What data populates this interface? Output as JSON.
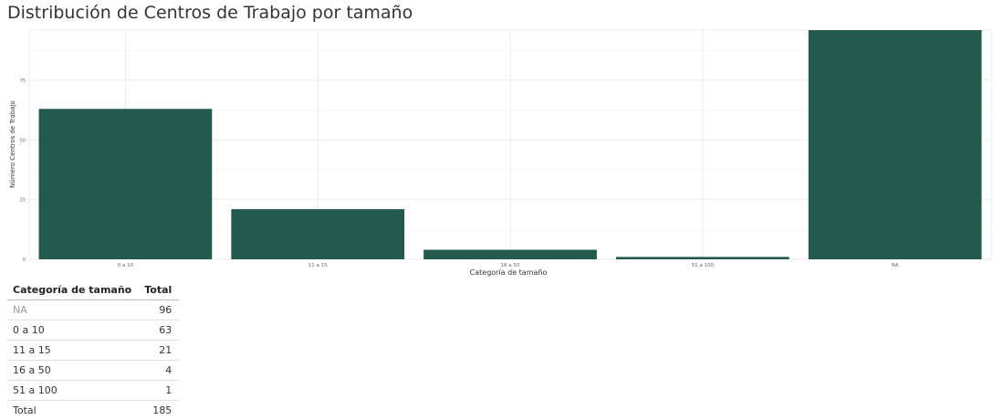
{
  "title": "Distribución de Centros de Trabajo por tamaño",
  "colors": {
    "bar": "#235a4d",
    "grid": "#ebebeb",
    "axis_text": "#666666"
  },
  "chart_data": {
    "type": "bar",
    "title": "Distribución de Centros de Trabajo por tamaño",
    "xlabel": "Categoría de tamaño",
    "ylabel": "Número Centros de Trabajo",
    "categories": [
      "0 a 10",
      "11 a 15",
      "16 a 50",
      "51 a 100",
      "NA"
    ],
    "values": [
      63,
      21,
      4,
      1,
      96
    ],
    "y_ticks": [
      "0",
      "25",
      "50",
      "75"
    ],
    "ylim": [
      0,
      96
    ],
    "grid": true,
    "legend": "none"
  },
  "table": {
    "headers": [
      "Categoría de tamaño",
      "Total"
    ],
    "rows": [
      {
        "category": "NA",
        "total": "96"
      },
      {
        "category": "0 a 10",
        "total": "63"
      },
      {
        "category": "11 a 15",
        "total": "21"
      },
      {
        "category": "16 a 50",
        "total": "4"
      },
      {
        "category": "51 a 100",
        "total": "1"
      },
      {
        "category": "Total",
        "total": "185"
      }
    ]
  }
}
